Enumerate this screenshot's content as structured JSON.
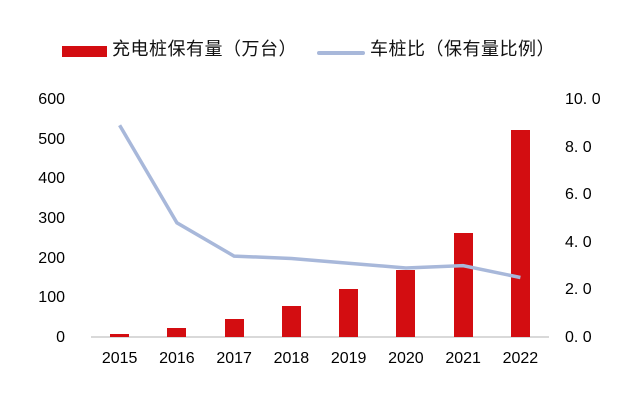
{
  "legend": {
    "bar_label": "充电桩保有量（万台）",
    "line_label": "车桩比（保有量比例）"
  },
  "colors": {
    "bar": "#d30d11",
    "line": "#a8b8da",
    "axis_line": "#d9d9d9",
    "text": "#000000",
    "background": "#ffffff"
  },
  "chart_data": {
    "type": "bar",
    "subtype": "combo-bar-line-dual-axis",
    "title": "",
    "categories": [
      "2015",
      "2016",
      "2017",
      "2018",
      "2019",
      "2020",
      "2021",
      "2022"
    ],
    "series": [
      {
        "name": "充电桩保有量（万台）",
        "type": "bar",
        "axis": "left",
        "color": "#d30d11",
        "values": [
          7,
          22,
          45,
          78,
          122,
          168,
          262,
          521
        ]
      },
      {
        "name": "车桩比（保有量比例）",
        "type": "line",
        "axis": "right",
        "color": "#a8b8da",
        "values": [
          8.9,
          4.8,
          3.4,
          3.3,
          3.1,
          2.9,
          3.0,
          2.5
        ]
      }
    ],
    "left_axis": {
      "ticks": [
        "600",
        "500",
        "400",
        "300",
        "200",
        "100",
        "0"
      ],
      "range": [
        0,
        600
      ]
    },
    "right_axis": {
      "ticks": [
        "10. 0",
        "8. 0",
        "6. 0",
        "4. 0",
        "2. 0",
        "0. 0"
      ],
      "range": [
        0,
        10
      ]
    },
    "grid": false,
    "legend_position": "top"
  }
}
